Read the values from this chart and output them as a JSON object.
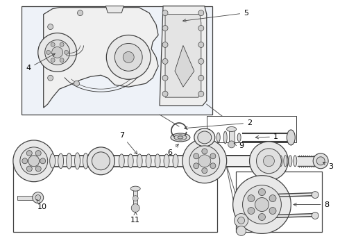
{
  "bg": "#ffffff",
  "line": "#404040",
  "light_gray": "#c8c8c8",
  "mid_gray": "#a0a0a0",
  "dark_gray": "#707070",
  "box_fill": "#eef2f8"
}
